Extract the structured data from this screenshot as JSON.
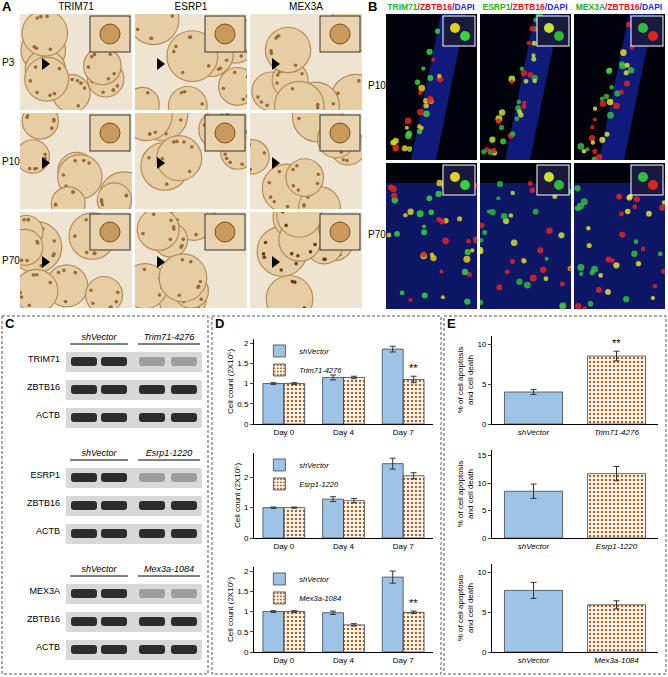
{
  "panels": {
    "A": {
      "label": "A",
      "columns": [
        "TRIM71",
        "ESRP1",
        "MEX3A"
      ],
      "rows": [
        "P3",
        "P10",
        "P70"
      ]
    },
    "B": {
      "label": "B",
      "columns": [
        [
          {
            "text": "TRIM71",
            "color": "#22b02e"
          },
          {
            "text": "/ZBTB16",
            "color": "#e8141c"
          },
          {
            "text": "/DAPI",
            "color": "#1c2de0"
          }
        ],
        [
          {
            "text": "ESRP1",
            "color": "#22b02e"
          },
          {
            "text": "/ZBTB16",
            "color": "#e8141c"
          },
          {
            "text": "/DAPI",
            "color": "#1c2de0"
          }
        ],
        [
          {
            "text": "MEX3A",
            "color": "#22b02e"
          },
          {
            "text": "/ZBTB16",
            "color": "#e8141c"
          },
          {
            "text": "/DAPI",
            "color": "#1c2de0"
          }
        ]
      ],
      "rows": [
        "P10",
        "P70"
      ]
    },
    "C": {
      "label": "C",
      "blots": [
        {
          "lanes": [
            "shVector",
            "Trim71-4276"
          ],
          "rows": [
            "TRIM71",
            "ZBTB16",
            "ACTB"
          ]
        },
        {
          "lanes": [
            "shVector",
            "Esrp1-1220"
          ],
          "rows": [
            "ESRP1",
            "ZBTB16",
            "ACTB"
          ]
        },
        {
          "lanes": [
            "shVector",
            "Mex3a-1084"
          ],
          "rows": [
            "MEX3A",
            "ZBTB16",
            "ACTB"
          ]
        }
      ]
    },
    "D": {
      "label": "D"
    },
    "E": {
      "label": "E"
    }
  },
  "chart_data": [
    {
      "type": "bar",
      "categories": [
        "Day 0",
        "Day 4",
        "Day 7"
      ],
      "y_label": "Cell count (2X10⁵)",
      "ylim": [
        0,
        2.1
      ],
      "yticks": [
        0,
        0.5,
        1,
        1.5,
        2
      ],
      "grid": false,
      "legend": "upper left",
      "series": [
        {
          "name": "shVector",
          "color": "#9dc3e6",
          "values": [
            1,
            1.15,
            1.85
          ],
          "errors": [
            0.02,
            0.06,
            0.07
          ]
        },
        {
          "name": "Trim71-4276",
          "color": "#fbe5d6",
          "marker": "dots",
          "values": [
            1,
            1.15,
            1.1
          ],
          "errors": [
            0.02,
            0.03,
            0.08
          ]
        }
      ],
      "annotations": [
        {
          "category": "Day 7",
          "series": "Trim71-4276",
          "text": "**"
        }
      ]
    },
    {
      "type": "bar",
      "categories": [
        "Day 0",
        "Day 4",
        "Day 7"
      ],
      "y_label": "Cell count (2X10⁵)",
      "ylim": [
        0,
        2.8
      ],
      "yticks": [
        0,
        1,
        2
      ],
      "grid": false,
      "legend": "upper left",
      "series": [
        {
          "name": "shVector",
          "color": "#9dc3e6",
          "values": [
            1,
            1.28,
            2.45
          ],
          "errors": [
            0.02,
            0.08,
            0.18
          ]
        },
        {
          "name": "Esrp1-1220",
          "color": "#fbe5d6",
          "marker": "dots",
          "values": [
            1,
            1.23,
            2.05
          ],
          "errors": [
            0.02,
            0.07,
            0.1
          ]
        }
      ],
      "annotations": []
    },
    {
      "type": "bar",
      "categories": [
        "Day 0",
        "Day 4",
        "Day 7"
      ],
      "y_label": "Cell count (2X10⁵)",
      "ylim": [
        0,
        2.1
      ],
      "yticks": [
        0,
        0.5,
        1,
        1.5,
        2
      ],
      "grid": false,
      "legend": "upper left",
      "series": [
        {
          "name": "shVector",
          "color": "#9dc3e6",
          "values": [
            1,
            0.97,
            1.85
          ],
          "errors": [
            0.02,
            0.04,
            0.15
          ]
        },
        {
          "name": "Mex3a-1084",
          "color": "#fbe5d6",
          "marker": "dots",
          "values": [
            1,
            0.67,
            0.98
          ],
          "errors": [
            0.02,
            0.03,
            0.03
          ]
        }
      ],
      "annotations": [
        {
          "category": "Day 7",
          "series": "Mex3a-1084",
          "text": "**"
        }
      ]
    },
    {
      "type": "bar",
      "categories": [
        "shVector",
        "Trim71-4276"
      ],
      "y_label": "% of cell apoptosis and cell death",
      "ylim": [
        0,
        11
      ],
      "yticks": [
        0,
        5,
        10
      ],
      "grid": false,
      "series": [
        {
          "name": "shVector",
          "color": "#9dc3e6",
          "values": [
            4.0,
            null
          ],
          "errors": [
            0.3,
            null
          ]
        },
        {
          "name": "Trim71-4276",
          "color": "#fbe5d6",
          "marker": "dots",
          "values": [
            null,
            8.5
          ],
          "errors": [
            null,
            0.6
          ]
        }
      ],
      "annotations": [
        {
          "category": "Trim71-4276",
          "series": "Trim71-4276",
          "text": "**"
        }
      ]
    },
    {
      "type": "bar",
      "categories": [
        "shVector",
        "Esrp1-1220"
      ],
      "y_label": "% of cell apoptosis and cell death",
      "ylim": [
        0,
        16
      ],
      "yticks": [
        0,
        5,
        10,
        15
      ],
      "grid": false,
      "series": [
        {
          "name": "shVector",
          "color": "#9dc3e6",
          "values": [
            8.5,
            null
          ],
          "errors": [
            1.3,
            null
          ]
        },
        {
          "name": "Esrp1-1220",
          "color": "#fbe5d6",
          "marker": "dots",
          "values": [
            null,
            11.7
          ],
          "errors": [
            null,
            1.3
          ]
        }
      ],
      "annotations": []
    },
    {
      "type": "bar",
      "categories": [
        "shVector",
        "Mex3a-1084"
      ],
      "y_label": "% of cell apoptosis and cell death",
      "ylim": [
        0,
        11
      ],
      "yticks": [
        0,
        5,
        10
      ],
      "grid": false,
      "series": [
        {
          "name": "shVector",
          "color": "#9dc3e6",
          "values": [
            7.7,
            null
          ],
          "errors": [
            1.0,
            null
          ]
        },
        {
          "name": "Mex3a-1084",
          "color": "#fbe5d6",
          "marker": "dots",
          "values": [
            null,
            5.9
          ],
          "errors": [
            null,
            0.5
          ]
        }
      ],
      "annotations": []
    }
  ]
}
